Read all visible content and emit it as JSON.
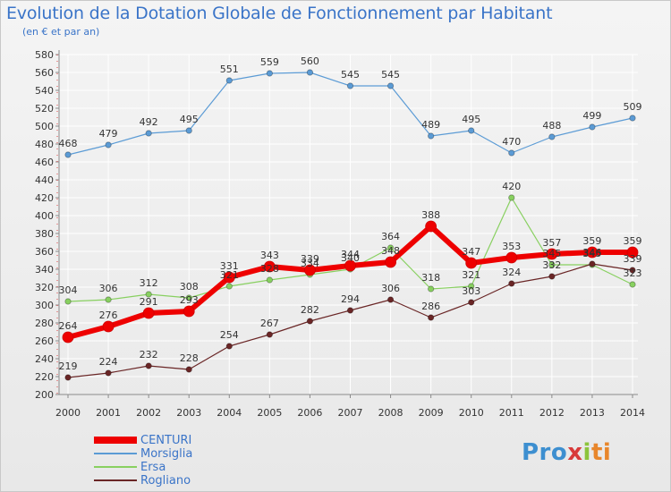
{
  "title": "Evolution de la Dotation Globale de Fonctionnement par Habitant",
  "subtitle": "(en € et par an)",
  "logo": {
    "p": "Pro",
    "x": "x",
    "i": "i",
    "ti": "ti"
  },
  "colors": {
    "CENTURI": "#ee0000",
    "Morsiglia": "#5b9bd5",
    "Ersa": "#88d060",
    "Rogliano": "#6a2626",
    "axis": "#8a8a8a",
    "grid": "#ffffff",
    "title": "#3a74c8"
  },
  "chart_data": {
    "type": "line",
    "title": "Evolution de la Dotation Globale de Fonctionnement par Habitant",
    "subtitle": "(en € et par an)",
    "xlabel": "",
    "ylabel": "",
    "x": [
      2000,
      2001,
      2002,
      2003,
      2004,
      2005,
      2006,
      2007,
      2008,
      2009,
      2010,
      2011,
      2012,
      2013,
      2014
    ],
    "ylim": [
      200,
      580
    ],
    "yticks": [
      200,
      220,
      240,
      260,
      280,
      300,
      320,
      340,
      360,
      380,
      400,
      420,
      440,
      460,
      480,
      500,
      520,
      540,
      560,
      580
    ],
    "grid": true,
    "legend_position": "bottom-left",
    "series": [
      {
        "name": "CENTURI",
        "values": [
          264,
          276,
          291,
          293,
          331,
          343,
          339,
          344,
          348,
          388,
          347,
          353,
          357,
          359,
          359
        ]
      },
      {
        "name": "Morsiglia",
        "values": [
          468,
          479,
          492,
          495,
          551,
          559,
          560,
          545,
          545,
          489,
          495,
          470,
          488,
          499,
          509
        ]
      },
      {
        "name": "Ersa",
        "values": [
          304,
          306,
          312,
          308,
          321,
          328,
          334,
          340,
          364,
          318,
          321,
          420,
          345,
          345,
          323
        ]
      },
      {
        "name": "Rogliano",
        "values": [
          219,
          224,
          232,
          228,
          254,
          267,
          282,
          294,
          306,
          286,
          303,
          324,
          332,
          346,
          339
        ]
      }
    ]
  }
}
